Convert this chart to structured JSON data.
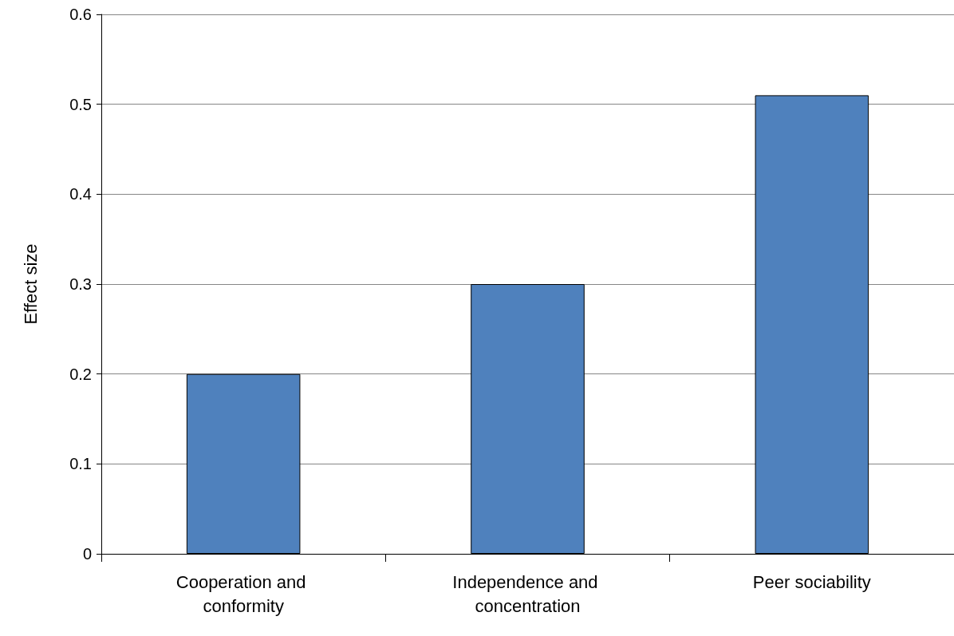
{
  "chart_data": {
    "type": "bar",
    "ylabel": "Effect size",
    "categories": [
      "Cooperation and conformity",
      "Independence and concentration",
      "Peer sociability"
    ],
    "values": [
      0.2,
      0.3,
      0.51
    ],
    "color": "#4f81bd",
    "ylim": [
      0,
      0.6
    ],
    "yticks": [
      0,
      0.1,
      0.2,
      0.3,
      0.4,
      0.5,
      0.6
    ],
    "grid": "y"
  }
}
